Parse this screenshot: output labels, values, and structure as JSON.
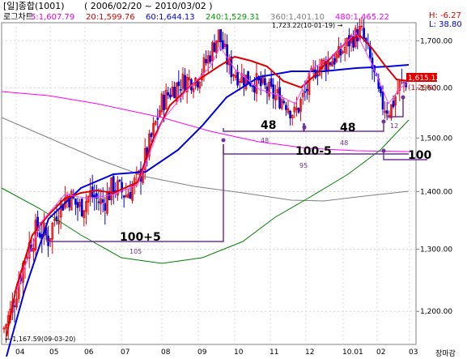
{
  "header": {
    "title": "[일]종합(1001)",
    "date_range": "( 2006/02/20 ~ 2010/03/02 )",
    "scale_label": "로그차트"
  },
  "legend": [
    {
      "text": "5:1,607.79",
      "color": "#e000e0"
    },
    {
      "text": "20:1,599.76",
      "color": "#e00000"
    },
    {
      "text": "60:1,644.13",
      "color": "#0000e0"
    },
    {
      "text": "240:1,529.31",
      "color": "#00a000"
    },
    {
      "text": "360:1,401.10",
      "color": "#808080"
    },
    {
      "text": "480:1,465.22",
      "color": "#ff00ff"
    }
  ],
  "stats": {
    "high": "H: -6.27",
    "low": "L: 38.80"
  },
  "last_price": {
    "value": "1,615.12",
    "pct": "(1.29%)"
  },
  "annotations": {
    "peak_label": "1,723.22(10-01-19) →",
    "low_label": "← 1,167.59(09-03-20)",
    "bracket_a": "100+5",
    "bracket_a_days": "105",
    "bracket_b": "100-5",
    "bracket_b_days": "95",
    "bracket_c": "48",
    "bracket_c_days": "48",
    "bracket_d": "48",
    "bracket_d_days": "48",
    "bracket_e": "100",
    "bracket_f_days": "12"
  },
  "x_labels": [
    "04",
    "05",
    "06",
    "07",
    "08",
    "09",
    "10",
    "11",
    "12",
    "10.01",
    "02",
    "03"
  ],
  "y_labels": [
    "1,700.00",
    "1,600.00",
    "1,500.00",
    "1,400.00",
    "1,300.00",
    "1,200.00"
  ],
  "corner_label": "장마감",
  "colors": {
    "candle_up": "#e00000",
    "candle_down": "#0000e0",
    "bracket": "#7030a0",
    "grid": "#a0a0a0"
  },
  "chart_data": {
    "type": "candlestick",
    "scale": "log",
    "ylim": [
      1150,
      1740
    ],
    "x": [
      "2009-04",
      "2009-05",
      "2009-06",
      "2009-07",
      "2009-08",
      "2009-09",
      "2009-10",
      "2009-11",
      "2009-12",
      "2010-01",
      "2010-02",
      "2010-03"
    ],
    "close": [
      1360,
      1400,
      1390,
      1560,
      1590,
      1680,
      1580,
      1560,
      1660,
      1680,
      1590,
      1615
    ],
    "series": [
      {
        "name": "5",
        "last": 1607.79
      },
      {
        "name": "20",
        "last": 1599.76
      },
      {
        "name": "60",
        "last": 1644.13
      },
      {
        "name": "240",
        "last": 1529.31
      },
      {
        "name": "360",
        "last": 1401.1
      },
      {
        "name": "480",
        "last": 1465.22
      }
    ],
    "high": 1723.22,
    "low": 1167.59
  }
}
